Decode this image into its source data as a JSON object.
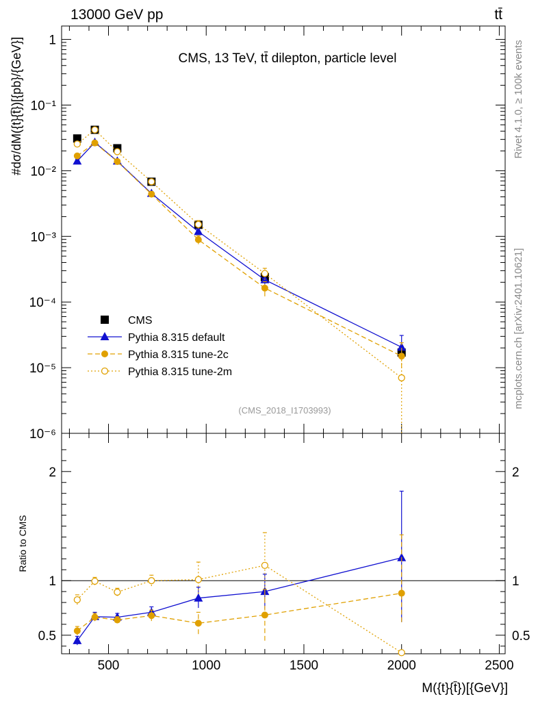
{
  "header": {
    "energy_label": "13000 GeV pp",
    "process_label": "tt̄"
  },
  "side_labels": {
    "rivet": "Rivet 4.1.0, ≥ 100k events",
    "site": "mcplots.cern.ch [arXiv:2401.10621]"
  },
  "chart_data": [
    {
      "type": "line",
      "title": "CMS, 13 TeV, tt̄ dilepton, particle level",
      "analysis_tag": "(CMS_2018_I1703993)",
      "ylabel": "#dσ/dM({t}{t̄})[{pb}/{GeV}]",
      "yscale": "log",
      "ylim": [
        1e-06,
        1.6
      ],
      "xlim": [
        260,
        2530
      ],
      "y_tick_labels": [
        "1",
        "10⁻¹",
        "10⁻²",
        "10⁻³",
        "10⁻⁴",
        "10⁻⁵",
        "10⁻⁶"
      ],
      "legend_position": "bottom-left",
      "x": [
        340,
        430,
        545,
        720,
        960,
        1300,
        2000
      ],
      "series": [
        {
          "name": "CMS",
          "color": "#000000",
          "marker": "square",
          "line": "none",
          "values": [
            0.031,
            0.042,
            0.022,
            0.0068,
            0.0015,
            0.00024,
            1.7e-05
          ]
        },
        {
          "name": "Pythia 8.315 default",
          "color": "#1010d0",
          "marker": "triangle",
          "line": "solid",
          "values": [
            0.014,
            0.027,
            0.014,
            0.0045,
            0.00118,
            0.000218,
            2.05e-05
          ],
          "err_low": [
            0.0131,
            0.0257,
            0.0133,
            0.0042,
            0.00105,
            0.000185,
            1.4e-05
          ],
          "err_high": [
            0.0149,
            0.0283,
            0.0147,
            0.0048,
            0.00131,
            0.000251,
            3.1e-05
          ]
        },
        {
          "name": "Pythia 8.315 tune-2c",
          "color": "#e0a000",
          "marker": "circle",
          "line": "dashed",
          "values": [
            0.0168,
            0.0265,
            0.0138,
            0.0044,
            0.00089,
            0.000163,
            1.5e-05
          ],
          "err_low": [
            0.0155,
            0.0252,
            0.013,
            0.0041,
            0.00076,
            0.000122,
            1e-05
          ],
          "err_high": [
            0.0181,
            0.0278,
            0.0146,
            0.0047,
            0.00102,
            0.000204,
            2.4e-05
          ]
        },
        {
          "name": "Pythia 8.315 tune-2m",
          "color": "#e0a000",
          "marker": "open-circle",
          "line": "dotted",
          "values": [
            0.0255,
            0.042,
            0.0195,
            0.0068,
            0.00152,
            0.000272,
            7e-06
          ],
          "err_low": [
            0.024,
            0.0405,
            0.0185,
            0.0064,
            0.0013,
            0.000218,
            1e-06
          ],
          "err_high": [
            0.027,
            0.0435,
            0.0205,
            0.0072,
            0.00174,
            0.000326,
            1.6e-05
          ]
        }
      ]
    },
    {
      "type": "line",
      "ylabel": "Ratio to CMS",
      "xlabel": "M({t}{t̄})[{GeV}]",
      "ylim": [
        0.33,
        2.35
      ],
      "xlim": [
        260,
        2530
      ],
      "reference_line": 1,
      "x_tick_labels": [
        "500",
        "1000",
        "1500",
        "2000",
        "2500"
      ],
      "y_tick_labels": [
        "0.5",
        "1",
        "2"
      ],
      "x": [
        340,
        430,
        545,
        720,
        960,
        1300,
        2000
      ],
      "series": [
        {
          "name": "Pythia 8.315 default",
          "color": "#1010d0",
          "marker": "triangle",
          "line": "solid",
          "values": [
            0.45,
            0.67,
            0.665,
            0.71,
            0.84,
            0.9,
            1.21
          ],
          "err_low": [
            0.41,
            0.63,
            0.63,
            0.67,
            0.75,
            0.74,
            0.62
          ],
          "err_high": [
            0.49,
            0.71,
            0.7,
            0.76,
            0.94,
            1.06,
            1.82
          ]
        },
        {
          "name": "Pythia 8.315 tune-2c",
          "color": "#e0a000",
          "marker": "circle",
          "line": "dashed",
          "values": [
            0.54,
            0.665,
            0.64,
            0.68,
            0.61,
            0.685,
            0.885
          ],
          "err_low": [
            0.5,
            0.63,
            0.61,
            0.63,
            0.51,
            0.45,
            0.62
          ],
          "err_high": [
            0.58,
            0.7,
            0.67,
            0.73,
            0.71,
            0.92,
            1.42
          ]
        },
        {
          "name": "Pythia 8.315 tune-2m",
          "color": "#e0a000",
          "marker": "open-circle",
          "line": "dotted",
          "values": [
            0.825,
            0.995,
            0.895,
            1.0,
            1.01,
            1.14,
            0.34
          ],
          "err_low": [
            0.78,
            0.96,
            0.86,
            0.95,
            0.88,
            0.84,
            0.33
          ],
          "err_high": [
            0.87,
            1.03,
            0.93,
            1.05,
            1.17,
            1.44,
            0.35
          ]
        }
      ]
    }
  ]
}
